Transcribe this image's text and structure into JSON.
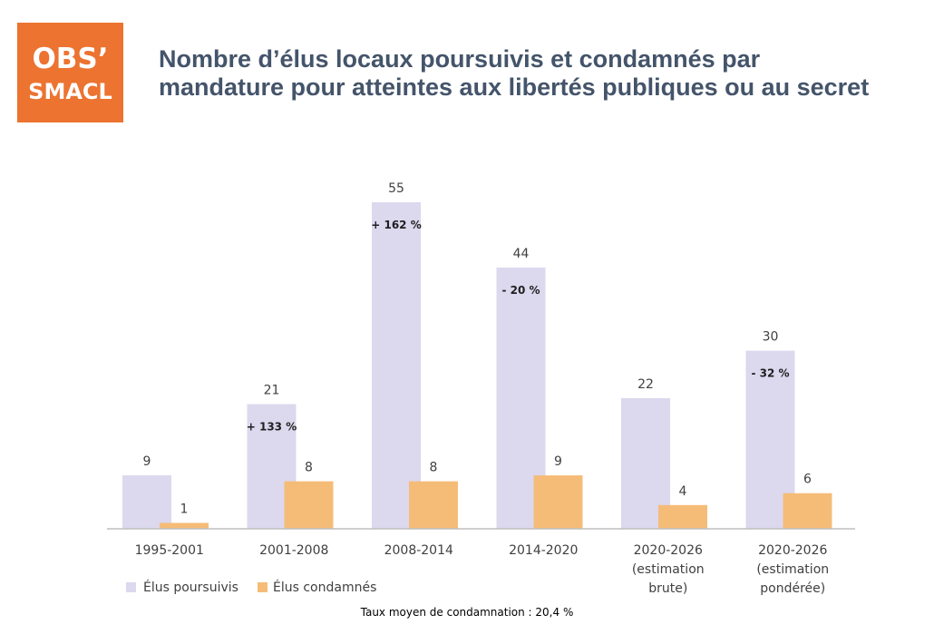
{
  "logo": {
    "line1": "OBS’",
    "line2": "SMACL"
  },
  "title": {
    "line1": "Nombre d’élus locaux poursuivis et condamnés par",
    "line2": "mandature pour atteintes aux libertés publiques ou au secret"
  },
  "footnote": "Taux moyen de condamnation : 20,4 %",
  "colors": {
    "poursuivis": "#dcd8ee",
    "condamnes": "#f5bc78",
    "axis": "#bfbfbf",
    "text": "#404040",
    "logo": "#ec7330",
    "title": "#44546a"
  },
  "chart_data": {
    "type": "bar",
    "categories": [
      [
        "1995-2001"
      ],
      [
        "2001-2008"
      ],
      [
        "2008-2014"
      ],
      [
        "2014-2020"
      ],
      [
        "2020-2026",
        "(estimation",
        "brute)"
      ],
      [
        "2020-2026",
        "(estimation",
        "pondérée)"
      ]
    ],
    "series": [
      {
        "name": "Élus poursuivis",
        "values": [
          9,
          21,
          55,
          44,
          22,
          30
        ]
      },
      {
        "name": "Élus condamnés",
        "values": [
          1,
          8,
          8,
          9,
          4,
          6
        ]
      }
    ],
    "annotations": [
      "",
      "+ 133 %",
      "+ 162 %",
      "- 20 %",
      "",
      "- 32 %"
    ],
    "ylim": [
      0,
      55
    ],
    "grid": false,
    "legend": "bottom-left"
  }
}
